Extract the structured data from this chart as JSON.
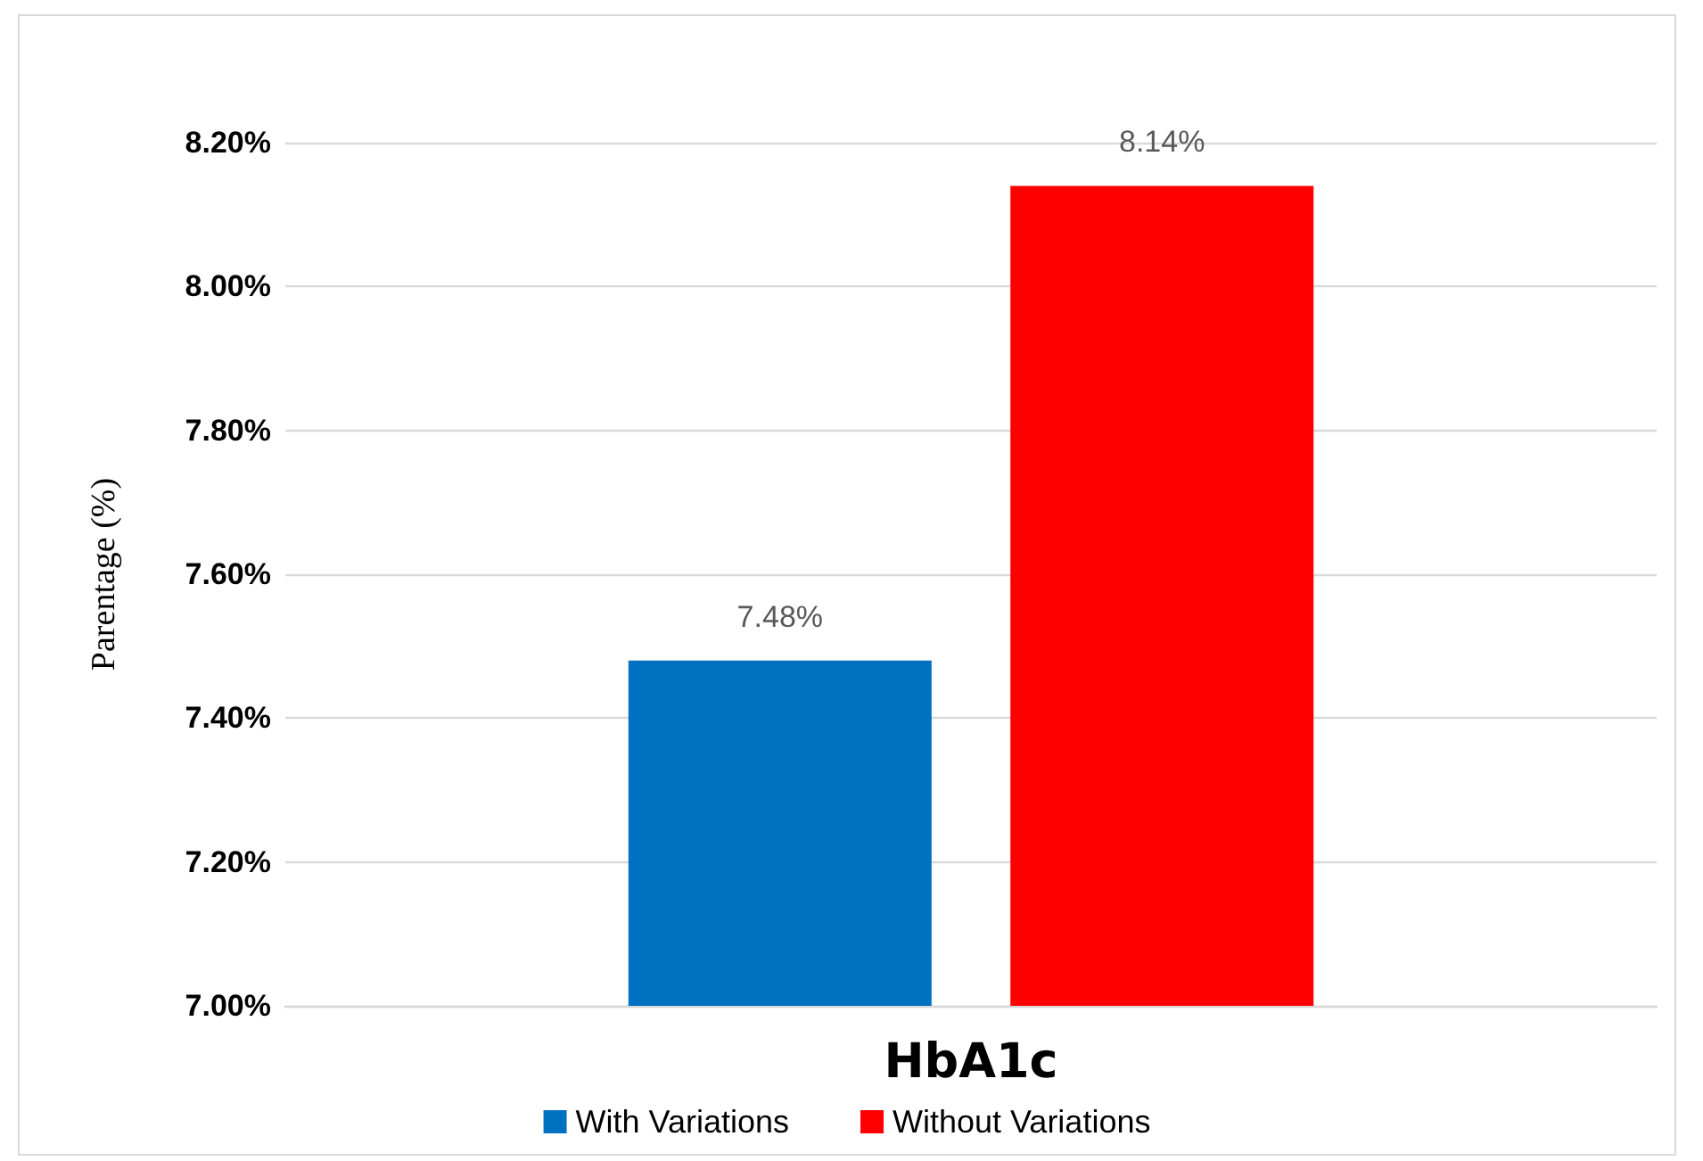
{
  "chart_data": {
    "type": "bar",
    "ylabel": "Parentage (%)",
    "categories": [
      "HbA1c"
    ],
    "series": [
      {
        "name": "With Variations",
        "color": "#0070c0",
        "values": [
          7.48
        ],
        "value_labels": [
          "7.48%"
        ]
      },
      {
        "name": "Without Variations",
        "color": "#ff0000",
        "values": [
          8.14
        ],
        "value_labels": [
          "8.14%"
        ]
      }
    ],
    "ylim": [
      7,
      8.2
    ],
    "yticks": [
      {
        "value": 7,
        "label": "7.00%"
      },
      {
        "value": 7.2,
        "label": "7.20%"
      },
      {
        "value": 7.4,
        "label": "7.40%"
      },
      {
        "value": 7.6,
        "label": "7.60%"
      },
      {
        "value": 7.8,
        "label": "7.80%"
      },
      {
        "value": 8,
        "label": "8.00%"
      },
      {
        "value": 8.2,
        "label": "8.20%"
      }
    ],
    "grid": "y",
    "legend": "bottom"
  }
}
